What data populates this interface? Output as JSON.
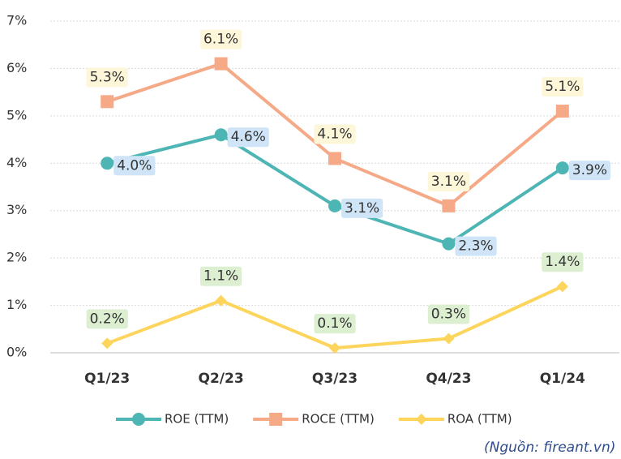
{
  "chart_data": {
    "type": "line",
    "categories": [
      "Q1/23",
      "Q2/23",
      "Q3/23",
      "Q4/23",
      "Q1/24"
    ],
    "series": [
      {
        "name": "ROE (TTM)",
        "color": "#4db6b4",
        "marker": "circle",
        "values": [
          4.0,
          4.6,
          3.1,
          2.3,
          3.9
        ],
        "value_labels": [
          "4.0%",
          "4.6%",
          "3.1%",
          "2.3%",
          "3.9%"
        ],
        "label_color": "#cfe5f7",
        "label_position": "right"
      },
      {
        "name": "ROCE (TTM)",
        "color": "#f5a987",
        "marker": "square",
        "values": [
          5.3,
          6.1,
          4.1,
          3.1,
          5.1
        ],
        "value_labels": [
          "5.3%",
          "6.1%",
          "4.1%",
          "3.1%",
          "5.1%"
        ],
        "label_color": "#fdf6d8",
        "label_position": "above"
      },
      {
        "name": "ROA (TTM)",
        "color": "#fdd55c",
        "marker": "diamond",
        "values": [
          0.2,
          1.1,
          0.1,
          0.3,
          1.4
        ],
        "value_labels": [
          "0.2%",
          "1.1%",
          "0.1%",
          "0.3%",
          "1.4%"
        ],
        "label_color": "#dcefd0",
        "label_position": "above"
      }
    ],
    "ylim": [
      0,
      7
    ],
    "yticks": [
      {
        "value": 0,
        "label": "0%"
      },
      {
        "value": 1,
        "label": "1%"
      },
      {
        "value": 2,
        "label": "2%"
      },
      {
        "value": 3,
        "label": "3%"
      },
      {
        "value": 4,
        "label": "4%"
      },
      {
        "value": 5,
        "label": "5%"
      },
      {
        "value": 6,
        "label": "6%"
      },
      {
        "value": 7,
        "label": "7%"
      }
    ],
    "grid": true,
    "legend": "bottom",
    "source": "(Nguồn: fireant.vn)"
  }
}
